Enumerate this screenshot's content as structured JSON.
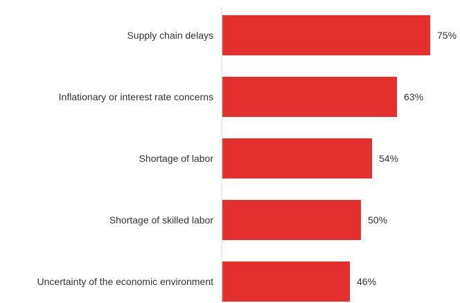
{
  "chart_data": {
    "type": "bar",
    "orientation": "horizontal",
    "categories": [
      "Supply chain delays",
      "Inflationary or interest rate concerns",
      "Shortage of labor",
      "Shortage of skilled labor",
      "Uncertainty of the economic environment"
    ],
    "values": [
      75,
      63,
      54,
      50,
      46
    ],
    "value_labels": [
      "75%",
      "63%",
      "54%",
      "50%",
      "46%"
    ],
    "title": "",
    "xlabel": "",
    "ylabel": "",
    "xlim": [
      0,
      100
    ],
    "grid": false,
    "legend": "none",
    "bar_color": "#e3302f",
    "axis_color": "#d9d9d9"
  }
}
